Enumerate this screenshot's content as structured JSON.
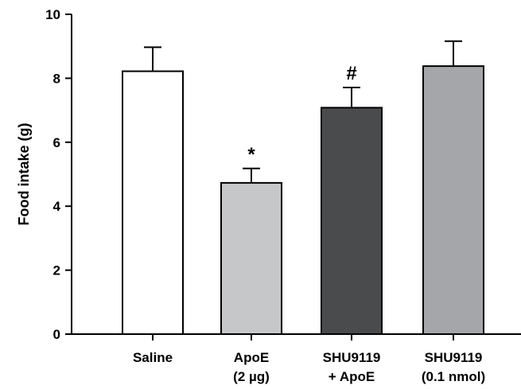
{
  "chart_data": {
    "type": "bar",
    "title": "",
    "xlabel": "",
    "ylabel": "Food intake (g)",
    "ylim": [
      0,
      10
    ],
    "yticks": [
      "0",
      "2",
      "4",
      "6",
      "8",
      "10"
    ],
    "grid": false,
    "categories": [
      {
        "lines": [
          "Saline"
        ]
      },
      {
        "lines": [
          "ApoE",
          "(2 µg)"
        ]
      },
      {
        "lines": [
          "SHU9119",
          "+ ApoE"
        ]
      },
      {
        "lines": [
          "SHU9119",
          "(0.1 nmol)"
        ]
      }
    ],
    "values": [
      8.22,
      4.73,
      7.08,
      8.38
    ],
    "errors": [
      0.75,
      0.45,
      0.63,
      0.78
    ],
    "annotations": [
      "",
      "*",
      "#",
      ""
    ],
    "colors": [
      "#ffffff",
      "#c6c7c9",
      "#4a4b4d",
      "#a5a6a9"
    ]
  }
}
